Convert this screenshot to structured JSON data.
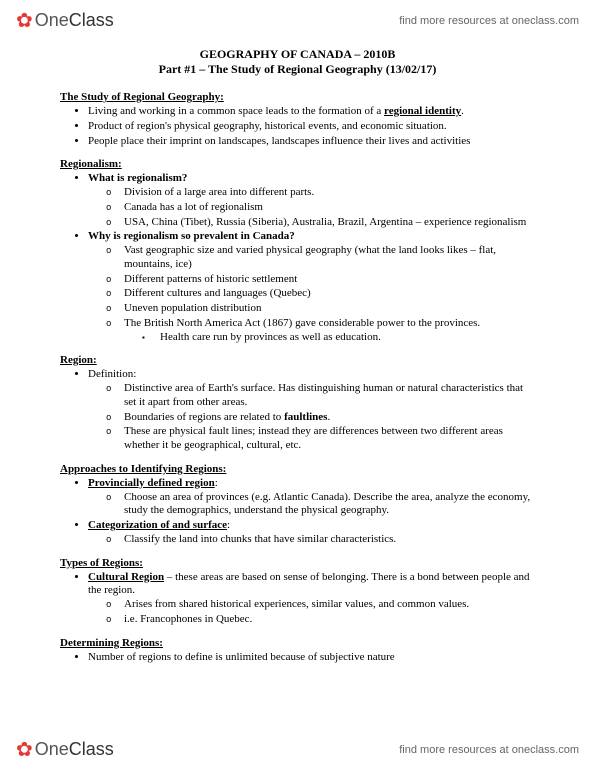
{
  "brand": {
    "one": "One",
    "class": "Class",
    "tagline": "find more resources at oneclass.com"
  },
  "title": {
    "main": "GEOGRAPHY OF CANADA – 2010B",
    "sub": "Part #1 – The Study of Regional Geography (13/02/17)"
  },
  "s1": {
    "head": "The Study of Regional Geography:",
    "b1a": "Living and working in a common space leads to the formation of a ",
    "b1b": "regional identity",
    "b1c": ".",
    "b2": "Product of region's physical geography, historical events, and economic situation.",
    "b3": "People place their imprint on landscapes, landscapes influence their lives and activities"
  },
  "s2": {
    "head": "Regionalism:",
    "q1": "What is regionalism?",
    "q1a": "Division of a large area into different parts.",
    "q1b": "Canada has a lot of regionalism",
    "q1c": "USA, China (Tibet), Russia (Siberia), Australia, Brazil, Argentina – experience regionalism",
    "q2": "Why is regionalism so prevalent in Canada?",
    "q2a": "Vast geographic size and varied physical geography (what the land looks likes – flat, mountains, ice)",
    "q2b": "Different patterns of historic settlement",
    "q2c": "Different cultures and languages (Quebec)",
    "q2d": "Uneven population distribution",
    "q2e": "The British North America Act (1867) gave considerable power to the provinces.",
    "q2e1": "Health care run by provinces as well as education."
  },
  "s3": {
    "head": "Region:",
    "b1": "Definition:",
    "b1a": "Distinctive area of Earth's surface. Has distinguishing human or natural characteristics that set it apart from other areas.",
    "b1b_a": "Boundaries of regions are related to ",
    "b1b_b": "faultlines",
    "b1b_c": ".",
    "b1c": "These are physical fault lines; instead they are differences between two different areas whether it be geographical, cultural, etc."
  },
  "s4": {
    "head": "Approaches to Identifying Regions:",
    "p1": "Provincially defined region",
    "p1a": "Choose an area of provinces (e.g. Atlantic Canada). Describe the area, analyze the economy, study the demographics, understand the physical geography.",
    "p2": "Categorization of and surface",
    "p2a": "Classify the land into chunks that have similar characteristics."
  },
  "s5": {
    "head": "Types of Regions:",
    "c1a": "Cultural Region",
    "c1b": " – these areas are based on sense of belonging. There is a bond between people and the region.",
    "c1_1": "Arises from shared historical experiences, similar values, and common values.",
    "c1_2": "i.e. Francophones in Quebec."
  },
  "s6": {
    "head": "Determining Regions:",
    "b1": "Number of regions to define is unlimited because of subjective nature"
  }
}
